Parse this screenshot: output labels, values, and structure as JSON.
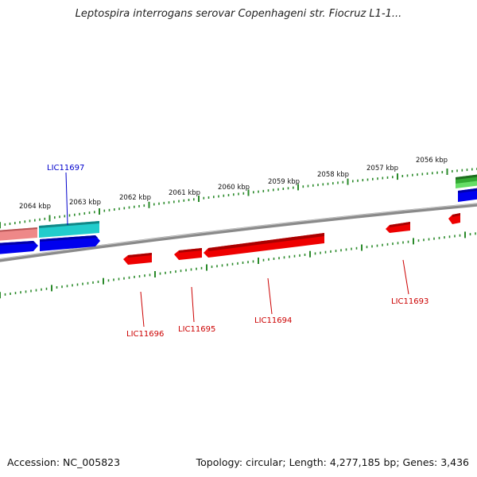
{
  "title": "Leptospira interrogans serovar Copenhageni str. Fiocruz L1-1...",
  "footer": {
    "accession": "Accession: NC_005823",
    "summary": "Topology: circular; Length: 4,277,185 bp; Genes: 3,436"
  },
  "scale_labels": [
    "2064 kbp",
    "2063 kbp",
    "2062 kbp",
    "2061 kbp",
    "2060 kbp",
    "2059 kbp",
    "2058 kbp",
    "2057 kbp",
    "2056 kbp"
  ],
  "gene_labels": [
    {
      "name": "LIC11697",
      "color": "#0000cc"
    },
    {
      "name": "LIC11696",
      "color": "#cc0000"
    },
    {
      "name": "LIC11695",
      "color": "#cc0000"
    },
    {
      "name": "LIC11694",
      "color": "#cc0000"
    },
    {
      "name": "LIC11693",
      "color": "#cc0000"
    }
  ],
  "colors": {
    "backbone": "#888888",
    "tick": "#2a8a2a",
    "forward_cds": "#0000ee",
    "reverse_cds": "#ee0000",
    "cyan_feature": "#22cccc",
    "pink_feature": "#ee8888",
    "green_feature": "#33aa33"
  }
}
